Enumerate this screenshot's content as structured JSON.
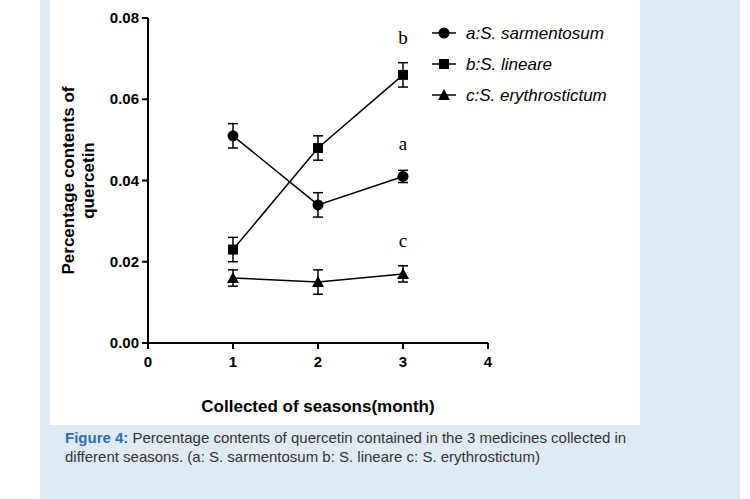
{
  "chart_data": {
    "type": "line",
    "y_label": "Percentage contents of quercetin",
    "x_label": "Collected of seasons(month)",
    "caption_label": "Figure 4:",
    "caption": "Percentage contents of quercetin contained in the 3 medicines collected in different seasons. (a: S. sarmentosum b: S. lineare c: S. erythrostictum)",
    "x": [
      1,
      2,
      3
    ],
    "xlim": [
      0,
      4
    ],
    "xticks": [
      0,
      1,
      2,
      3,
      4
    ],
    "ylim": [
      0,
      0.08
    ],
    "yticks": [
      {
        "value": 0,
        "label": "0.00"
      },
      {
        "value": 0.02,
        "label": "0.02"
      },
      {
        "value": 0.04,
        "label": "0.04"
      },
      {
        "value": 0.06,
        "label": "0.06"
      },
      {
        "value": 0.08,
        "label": "0.08"
      }
    ],
    "legend": "upper right",
    "grid": false,
    "series": [
      {
        "name": "a:S. sarmentosum",
        "color": "#000000",
        "marker": "circle",
        "line_style": "solid",
        "values": [
          0.051,
          0.034,
          0.041
        ],
        "errors": [
          0.003,
          0.003,
          0.0015
        ]
      },
      {
        "name": "b:S. lineare",
        "color": "#000000",
        "marker": "square",
        "line_style": "solid",
        "values": [
          0.023,
          0.048,
          0.066
        ],
        "errors": [
          0.003,
          0.003,
          0.003
        ]
      },
      {
        "name": "c:S. erythrostictum",
        "color": "#000000",
        "marker": "triangle",
        "line_style": "solid",
        "values": [
          0.016,
          0.015,
          0.017
        ],
        "errors": [
          0.002,
          0.003,
          0.002
        ]
      }
    ],
    "annotations": [
      {
        "text": "b",
        "x": 3,
        "y": 0.075
      },
      {
        "text": "a",
        "x": 3,
        "y": 0.049
      },
      {
        "text": "c",
        "x": 3,
        "y": 0.025
      }
    ]
  }
}
